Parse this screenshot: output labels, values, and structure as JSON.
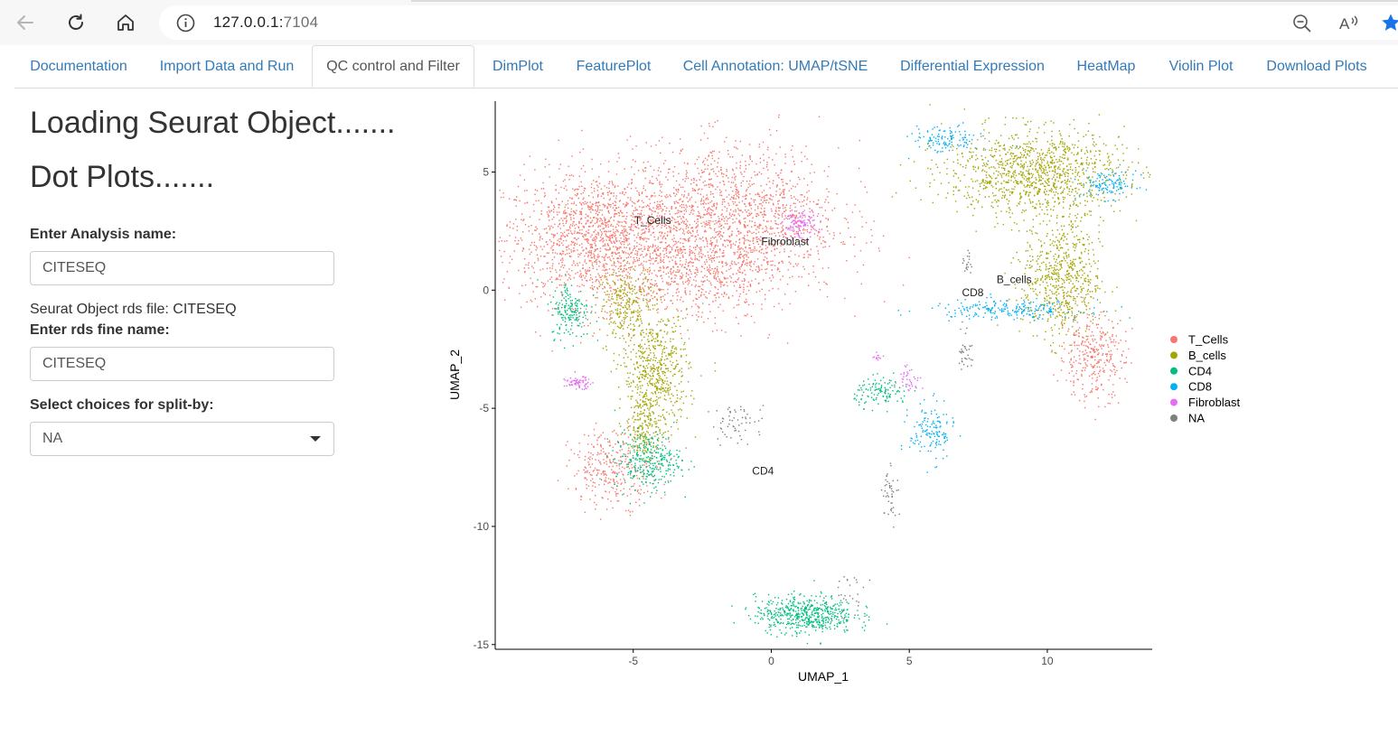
{
  "browser": {
    "url_host": "127.0.0.1:",
    "url_port": "7104",
    "icons": [
      "back-arrow-icon",
      "reload-icon",
      "home-icon",
      "info-icon",
      "zoom-out-icon",
      "read-aloud-icon",
      "favorite-star-icon"
    ]
  },
  "tabs": [
    {
      "label": "Documentation",
      "active": false
    },
    {
      "label": "Import Data and Run",
      "active": false
    },
    {
      "label": "QC control and Filter",
      "active": true
    },
    {
      "label": "DimPlot",
      "active": false
    },
    {
      "label": "FeaturePlot",
      "active": false
    },
    {
      "label": "Cell Annotation: UMAP/tSNE",
      "active": false
    },
    {
      "label": "Differential Expression",
      "active": false
    },
    {
      "label": "HeatMap",
      "active": false
    },
    {
      "label": "Violin Plot",
      "active": false
    },
    {
      "label": "Download Plots",
      "active": false
    }
  ],
  "sidebar": {
    "heading1": "Loading Seurat Object.......",
    "heading2": "Dot Plots.......",
    "analysis_label": "Enter Analysis name:",
    "analysis_value": "CITESEQ",
    "rds_info": "Seurat Object rds file: CITESEQ",
    "rds_label": "Enter rds fine name:",
    "rds_value": "CITESEQ",
    "split_label": "Select choices for split-by:",
    "split_value": "NA"
  },
  "chart_data": {
    "type": "scatter",
    "xlabel": "UMAP_1",
    "ylabel": "UMAP_2",
    "xlim": [
      -10,
      13.8
    ],
    "ylim": [
      -15.2,
      8
    ],
    "xticks": [
      -5,
      0,
      5,
      10
    ],
    "yticks": [
      5,
      0,
      -5,
      -10,
      -15
    ],
    "legend_position": "right",
    "series": [
      {
        "name": "T_Cells",
        "color": "#F8766D"
      },
      {
        "name": "B_cells",
        "color": "#A3A500"
      },
      {
        "name": "CD4",
        "color": "#00BF7D"
      },
      {
        "name": "CD8",
        "color": "#00B0F6"
      },
      {
        "name": "Fibroblast",
        "color": "#E76BF3"
      },
      {
        "name": "NA",
        "color": "#7F7F7F"
      }
    ],
    "cluster_labels": [
      {
        "text": "T_Cells",
        "x": -4.3,
        "y": 2.8
      },
      {
        "text": "Fibroblast",
        "x": 0.5,
        "y": 1.9
      },
      {
        "text": "B_cells",
        "x": 8.8,
        "y": 0.3
      },
      {
        "text": "CD8",
        "x": 7.3,
        "y": -0.25
      },
      {
        "text": "CD4",
        "x": -0.3,
        "y": -7.8
      }
    ],
    "clusters": [
      {
        "series": 0,
        "x": -6.1,
        "y": 2.2,
        "sx": 1.8,
        "sy": 1.4,
        "n": 1700
      },
      {
        "series": 0,
        "x": -1.3,
        "y": 3.0,
        "sx": 1.9,
        "sy": 1.6,
        "n": 1500
      },
      {
        "series": 0,
        "x": -2.5,
        "y": 0.5,
        "sx": 1.2,
        "sy": 0.9,
        "n": 350
      },
      {
        "series": 0,
        "x": -5.7,
        "y": -7.5,
        "sx": 0.8,
        "sy": 0.8,
        "n": 320
      },
      {
        "series": 0,
        "x": 11.6,
        "y": -2.8,
        "sx": 0.6,
        "sy": 0.9,
        "n": 320
      },
      {
        "series": 1,
        "x": -5.3,
        "y": -0.5,
        "sx": 0.5,
        "sy": 0.8,
        "n": 250
      },
      {
        "series": 1,
        "x": -4.2,
        "y": -3.5,
        "sx": 0.6,
        "sy": 1.3,
        "n": 600
      },
      {
        "series": 1,
        "x": -4.6,
        "y": -5.8,
        "sx": 0.3,
        "sy": 0.7,
        "n": 150
      },
      {
        "series": 1,
        "x": 9.5,
        "y": 5.0,
        "sx": 1.6,
        "sy": 0.9,
        "n": 1100
      },
      {
        "series": 1,
        "x": 10.5,
        "y": 0.5,
        "sx": 0.7,
        "sy": 1.3,
        "n": 650
      },
      {
        "series": 2,
        "x": -7.3,
        "y": -0.8,
        "sx": 0.35,
        "sy": 0.6,
        "n": 180
      },
      {
        "series": 2,
        "x": -4.5,
        "y": -7.2,
        "sx": 0.6,
        "sy": 0.6,
        "n": 300
      },
      {
        "series": 2,
        "x": 1.2,
        "y": -13.7,
        "sx": 0.9,
        "sy": 0.4,
        "n": 550
      },
      {
        "series": 2,
        "x": 4.0,
        "y": -4.3,
        "sx": 0.5,
        "sy": 0.3,
        "n": 120
      },
      {
        "series": 3,
        "x": 8.5,
        "y": -0.8,
        "sx": 1.4,
        "sy": 0.2,
        "n": 220
      },
      {
        "series": 3,
        "x": 12.2,
        "y": 4.5,
        "sx": 0.5,
        "sy": 0.3,
        "n": 120
      },
      {
        "series": 3,
        "x": 6.3,
        "y": 6.4,
        "sx": 0.6,
        "sy": 0.3,
        "n": 120
      },
      {
        "series": 3,
        "x": 5.8,
        "y": -6.0,
        "sx": 0.4,
        "sy": 0.6,
        "n": 140
      },
      {
        "series": 4,
        "x": 1.0,
        "y": 2.8,
        "sx": 0.3,
        "sy": 0.3,
        "n": 120
      },
      {
        "series": 4,
        "x": -7.0,
        "y": -3.9,
        "sx": 0.25,
        "sy": 0.12,
        "n": 70
      },
      {
        "series": 4,
        "x": 5.0,
        "y": -3.7,
        "sx": 0.2,
        "sy": 0.3,
        "n": 40
      },
      {
        "series": 4,
        "x": 3.8,
        "y": -2.8,
        "sx": 0.1,
        "sy": 0.1,
        "n": 12
      },
      {
        "series": 5,
        "x": -1.2,
        "y": -5.6,
        "sx": 0.5,
        "sy": 0.4,
        "n": 60
      },
      {
        "series": 5,
        "x": 2.8,
        "y": -12.8,
        "sx": 0.3,
        "sy": 0.4,
        "n": 25
      },
      {
        "series": 5,
        "x": 4.3,
        "y": -8.5,
        "sx": 0.15,
        "sy": 0.6,
        "n": 45
      },
      {
        "series": 5,
        "x": 7.0,
        "y": -2.5,
        "sx": 0.12,
        "sy": 0.5,
        "n": 35
      },
      {
        "series": 5,
        "x": 7.1,
        "y": 1.2,
        "sx": 0.1,
        "sy": 0.4,
        "n": 20
      }
    ]
  }
}
